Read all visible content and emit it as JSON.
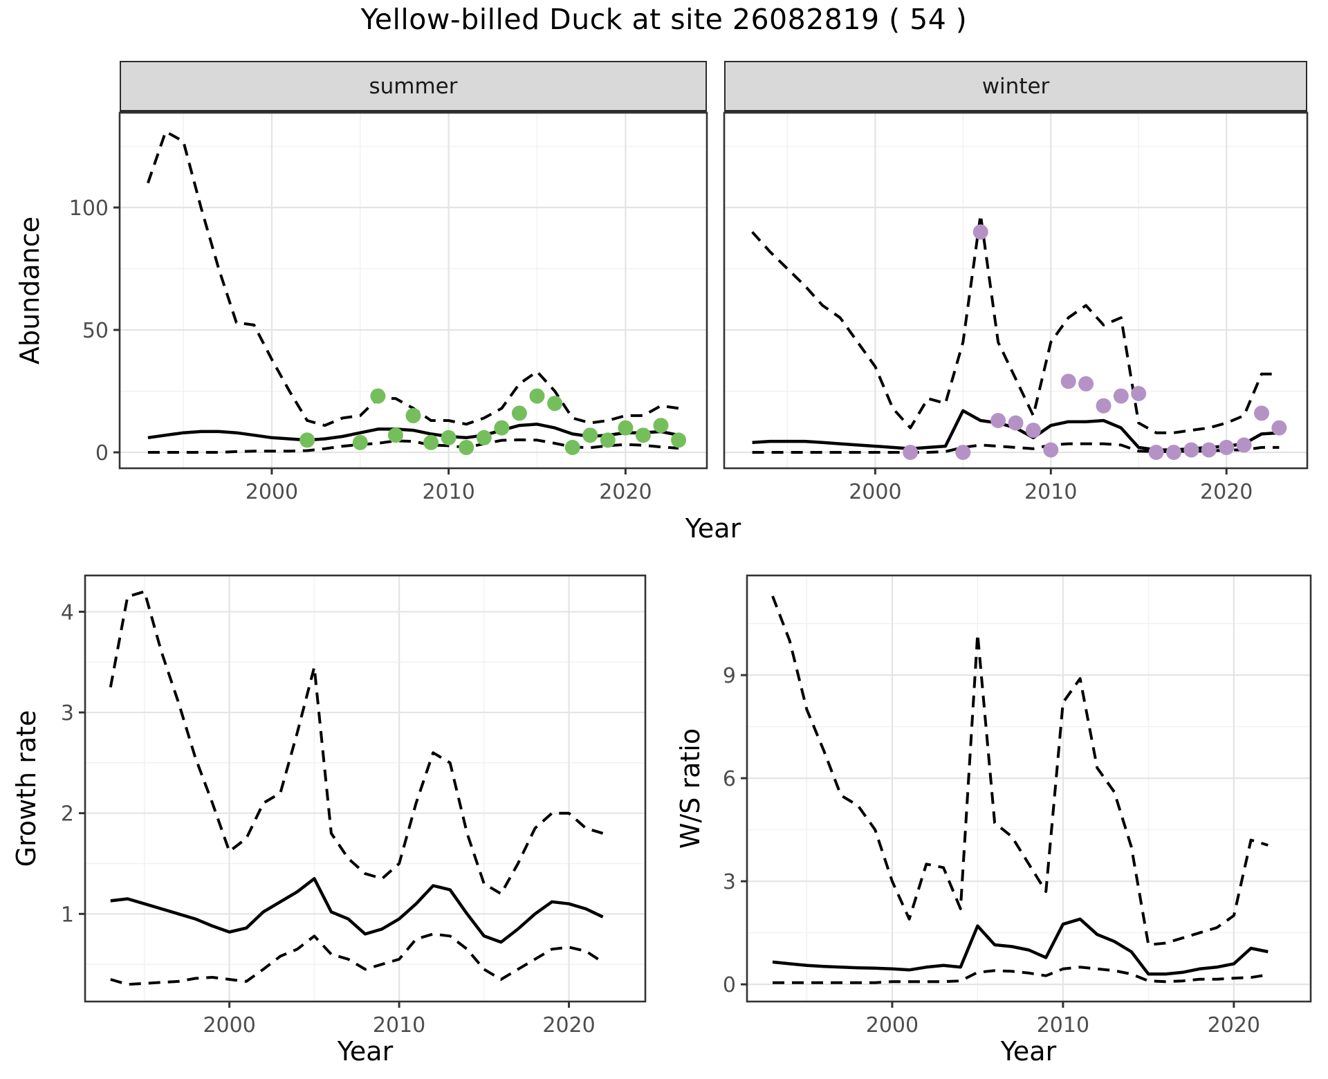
{
  "title": "Yellow-billed Duck at site 26082819 ( 54 )",
  "colors": {
    "summer_point": "#74BF5C",
    "winter_point": "#B592C5",
    "line": "#000000",
    "grid_major": "#E4E4E4",
    "grid_minor": "#F1F1F1",
    "panel_border": "#333333",
    "strip_bg": "#D9D9D9",
    "tick_text": "#4d4d4d"
  },
  "top_row": {
    "y_axis_title": "Abundance",
    "x_axis_title": "Year",
    "facets": [
      {
        "label": "summer"
      },
      {
        "label": "winter"
      }
    ]
  },
  "bottom_left": {
    "y_axis_title": "Growth rate",
    "x_axis_title": "Year"
  },
  "bottom_right": {
    "y_axis_title": "W/S ratio",
    "x_axis_title": "Year"
  },
  "chart_data": [
    {
      "id": "abundance_summer",
      "type": "line",
      "facet": "summer",
      "xlabel": "Year",
      "ylabel": "Abundance",
      "xlim": [
        1991.4,
        2024.6
      ],
      "ylim": [
        -6.5,
        138.7
      ],
      "x_ticks_major": [
        2000,
        2010,
        2020
      ],
      "x_ticks_minor": [
        1995,
        2005,
        2015
      ],
      "y_ticks_major": [
        0,
        50,
        100
      ],
      "y_ticks_minor": [
        25,
        75,
        125
      ],
      "x": [
        1993,
        1994,
        1995,
        1996,
        1997,
        1998,
        1999,
        2000,
        2001,
        2002,
        2003,
        2004,
        2005,
        2006,
        2007,
        2008,
        2009,
        2010,
        2011,
        2012,
        2013,
        2014,
        2015,
        2016,
        2017,
        2018,
        2019,
        2020,
        2021,
        2022,
        2023
      ],
      "series": [
        {
          "name": "median",
          "style": "solid",
          "values": [
            6,
            7,
            8,
            8.5,
            8.5,
            8,
            7,
            6,
            5.5,
            5,
            5.5,
            6.5,
            8,
            9.5,
            9.5,
            9,
            7.5,
            6.5,
            6,
            7,
            9,
            11,
            11.5,
            10,
            7.5,
            6.5,
            7,
            8,
            8,
            8.5,
            7
          ]
        },
        {
          "name": "upper_ci",
          "style": "dashed",
          "values": [
            110,
            131,
            127,
            100,
            75,
            53,
            52,
            38,
            25,
            13,
            11,
            14,
            15,
            22,
            22,
            18,
            13,
            13,
            11.5,
            14,
            18,
            28,
            33,
            25,
            14,
            12,
            13,
            15,
            15,
            19,
            18
          ]
        },
        {
          "name": "lower_ci",
          "style": "dashed",
          "values": [
            0,
            0,
            0,
            0,
            0,
            0.3,
            0.5,
            0.5,
            0.5,
            0.7,
            1.5,
            2.5,
            3.2,
            3.7,
            4.7,
            4.5,
            3,
            2.7,
            2,
            3.5,
            4.9,
            5.1,
            5,
            3.7,
            2.2,
            1.9,
            2.7,
            3.2,
            2.9,
            2.2,
            1.7
          ]
        }
      ],
      "points": {
        "name": "observed_counts_summer",
        "color": "#74BF5C",
        "data": [
          [
            2002,
            5
          ],
          [
            2005,
            4
          ],
          [
            2006,
            23
          ],
          [
            2007,
            7
          ],
          [
            2008,
            15
          ],
          [
            2009,
            4
          ],
          [
            2010,
            6
          ],
          [
            2011,
            2
          ],
          [
            2012,
            6
          ],
          [
            2013,
            10
          ],
          [
            2014,
            16
          ],
          [
            2015,
            23
          ],
          [
            2016,
            20
          ],
          [
            2017,
            2
          ],
          [
            2018,
            7
          ],
          [
            2019,
            5
          ],
          [
            2020,
            10
          ],
          [
            2021,
            7
          ],
          [
            2022,
            11
          ],
          [
            2023,
            5
          ]
        ]
      }
    },
    {
      "id": "abundance_winter",
      "type": "line",
      "facet": "winter",
      "xlabel": "Year",
      "ylabel": "Abundance",
      "xlim": [
        1991.4,
        2024.6
      ],
      "ylim": [
        -6.5,
        138.7
      ],
      "x_ticks_major": [
        2000,
        2010,
        2020
      ],
      "x_ticks_minor": [
        1995,
        2005,
        2015
      ],
      "y_ticks_major": [
        0,
        50,
        100
      ],
      "y_ticks_minor": [
        25,
        75,
        125
      ],
      "x": [
        1993,
        1994,
        1995,
        1996,
        1997,
        1998,
        1999,
        2000,
        2001,
        2002,
        2003,
        2004,
        2005,
        2006,
        2007,
        2008,
        2009,
        2010,
        2011,
        2012,
        2013,
        2014,
        2015,
        2016,
        2017,
        2018,
        2019,
        2020,
        2021,
        2022,
        2023
      ],
      "series": [
        {
          "name": "median",
          "style": "solid",
          "values": [
            4,
            4.5,
            4.5,
            4.5,
            4,
            3.5,
            3,
            2.5,
            2,
            1.5,
            2,
            2.5,
            17,
            13,
            12,
            10,
            6,
            11,
            12.5,
            12.5,
            13,
            10,
            2,
            1,
            1,
            1.5,
            2,
            2.5,
            3.5,
            7.5,
            8
          ]
        },
        {
          "name": "upper_ci",
          "style": "dashed",
          "values": [
            90,
            82,
            75,
            68,
            60,
            55,
            45,
            35,
            18,
            10,
            22,
            20,
            45,
            97,
            45,
            30,
            15,
            45,
            55,
            60,
            52,
            55,
            12,
            8,
            8,
            9,
            10,
            12,
            15,
            32,
            32
          ]
        },
        {
          "name": "lower_ci",
          "style": "dashed",
          "values": [
            0,
            0,
            0,
            0,
            0,
            0,
            0,
            0,
            0,
            0,
            0,
            0.3,
            2,
            3,
            2.5,
            2,
            1.5,
            3,
            3.5,
            3.5,
            3.5,
            3,
            0.5,
            0.3,
            0.3,
            0.5,
            0.5,
            1,
            1,
            2,
            2
          ]
        }
      ],
      "points": {
        "name": "observed_counts_winter",
        "color": "#B592C5",
        "data": [
          [
            2002,
            0
          ],
          [
            2005,
            0
          ],
          [
            2006,
            90
          ],
          [
            2007,
            13
          ],
          [
            2008,
            12
          ],
          [
            2009,
            9
          ],
          [
            2010,
            1
          ],
          [
            2011,
            29
          ],
          [
            2012,
            28
          ],
          [
            2013,
            19
          ],
          [
            2014,
            23
          ],
          [
            2015,
            24
          ],
          [
            2016,
            0
          ],
          [
            2017,
            0
          ],
          [
            2018,
            1
          ],
          [
            2019,
            1
          ],
          [
            2020,
            2
          ],
          [
            2021,
            3
          ],
          [
            2022,
            16
          ],
          [
            2023,
            10
          ]
        ]
      }
    },
    {
      "id": "growth_rate",
      "type": "line",
      "xlabel": "Year",
      "ylabel": "Growth rate",
      "xlim": [
        1991.5,
        2024.5
      ],
      "ylim": [
        0.13,
        4.36
      ],
      "x_ticks_major": [
        2000,
        2010,
        2020
      ],
      "x_ticks_minor": [
        1995,
        2005,
        2015
      ],
      "y_ticks_major": [
        1,
        2,
        3,
        4
      ],
      "y_ticks_minor": [
        0.5,
        1.5,
        2.5,
        3.5
      ],
      "x": [
        1993,
        1994,
        1995,
        1996,
        1997,
        1998,
        1999,
        2000,
        2001,
        2002,
        2003,
        2004,
        2005,
        2006,
        2007,
        2008,
        2009,
        2010,
        2011,
        2012,
        2013,
        2014,
        2015,
        2016,
        2017,
        2018,
        2019,
        2020,
        2021,
        2022
      ],
      "series": [
        {
          "name": "median",
          "style": "solid",
          "values": [
            1.13,
            1.15,
            1.1,
            1.05,
            1.0,
            0.95,
            0.88,
            0.82,
            0.86,
            1.02,
            1.12,
            1.22,
            1.35,
            1.02,
            0.95,
            0.8,
            0.85,
            0.95,
            1.1,
            1.28,
            1.24,
            1.0,
            0.78,
            0.72,
            0.85,
            1.0,
            1.12,
            1.1,
            1.05,
            0.97
          ]
        },
        {
          "name": "upper_ci",
          "style": "dashed",
          "values": [
            3.25,
            4.15,
            4.2,
            3.6,
            3.1,
            2.55,
            2.1,
            1.62,
            1.75,
            2.1,
            2.2,
            2.8,
            3.45,
            1.8,
            1.55,
            1.4,
            1.35,
            1.5,
            2.1,
            2.6,
            2.5,
            1.8,
            1.3,
            1.2,
            1.5,
            1.85,
            2.0,
            2.0,
            1.85,
            1.8
          ]
        },
        {
          "name": "lower_ci",
          "style": "dashed",
          "values": [
            0.35,
            0.3,
            0.31,
            0.32,
            0.33,
            0.36,
            0.37,
            0.35,
            0.33,
            0.45,
            0.58,
            0.65,
            0.78,
            0.6,
            0.55,
            0.45,
            0.5,
            0.55,
            0.75,
            0.8,
            0.78,
            0.65,
            0.45,
            0.35,
            0.45,
            0.55,
            0.65,
            0.67,
            0.63,
            0.52
          ]
        }
      ]
    },
    {
      "id": "ws_ratio",
      "type": "line",
      "xlabel": "Year",
      "ylabel": "W/S ratio",
      "xlim": [
        1991.5,
        2024.5
      ],
      "ylim": [
        -0.5,
        11.9
      ],
      "x_ticks_major": [
        2000,
        2010,
        2020
      ],
      "x_ticks_minor": [
        1995,
        2005,
        2015
      ],
      "y_ticks_major": [
        0,
        3,
        6,
        9
      ],
      "y_ticks_minor": [
        1.5,
        4.5,
        7.5,
        10.5
      ],
      "x": [
        1993,
        1994,
        1995,
        1996,
        1997,
        1998,
        1999,
        2000,
        2001,
        2002,
        2003,
        2004,
        2005,
        2006,
        2007,
        2008,
        2009,
        2010,
        2011,
        2012,
        2013,
        2014,
        2015,
        2016,
        2017,
        2018,
        2019,
        2020,
        2021,
        2022
      ],
      "series": [
        {
          "name": "median",
          "style": "solid",
          "values": [
            0.65,
            0.6,
            0.55,
            0.52,
            0.5,
            0.48,
            0.47,
            0.45,
            0.42,
            0.5,
            0.55,
            0.5,
            1.7,
            1.15,
            1.1,
            1.0,
            0.78,
            1.75,
            1.9,
            1.45,
            1.25,
            0.95,
            0.3,
            0.3,
            0.35,
            0.45,
            0.5,
            0.6,
            1.05,
            0.95
          ]
        },
        {
          "name": "upper_ci",
          "style": "dashed",
          "values": [
            11.3,
            10,
            8,
            6.8,
            5.5,
            5.2,
            4.5,
            3.0,
            1.9,
            3.5,
            3.4,
            2.2,
            10.2,
            4.7,
            4.3,
            3.5,
            2.7,
            8.2,
            8.9,
            6.3,
            5.6,
            4.0,
            1.15,
            1.2,
            1.35,
            1.5,
            1.65,
            2.0,
            4.2,
            4.05
          ]
        },
        {
          "name": "lower_ci",
          "style": "dashed",
          "values": [
            0.05,
            0.05,
            0.05,
            0.05,
            0.05,
            0.05,
            0.05,
            0.08,
            0.08,
            0.08,
            0.08,
            0.1,
            0.35,
            0.4,
            0.38,
            0.33,
            0.25,
            0.45,
            0.5,
            0.45,
            0.4,
            0.3,
            0.1,
            0.08,
            0.1,
            0.15,
            0.15,
            0.18,
            0.2,
            0.28
          ]
        }
      ]
    }
  ]
}
